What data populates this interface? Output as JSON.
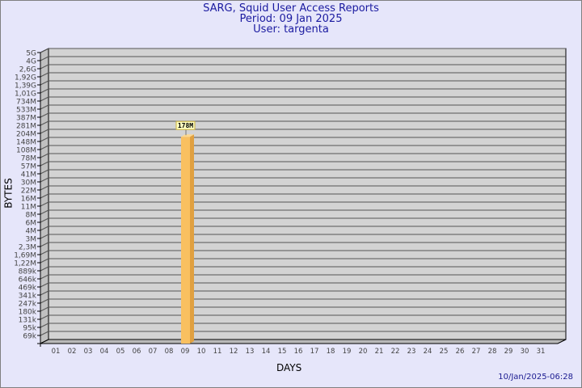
{
  "header": {
    "title": "SARG, Squid User Access Reports",
    "period": "Period: 09 Jan 2025",
    "user": "User: targenta"
  },
  "footer": {
    "timestamp": "10/Jan/2025-06:28"
  },
  "chart_data": {
    "type": "bar",
    "title": "SARG, Squid User Access Reports",
    "xlabel": "DAYS",
    "ylabel": "BYTES",
    "y_scale": "log-like (labeled ticks)",
    "y_ticks": [
      "5G",
      "4G",
      "2,6G",
      "1,92G",
      "1,39G",
      "1,01G",
      "734M",
      "533M",
      "387M",
      "281M",
      "204M",
      "148M",
      "108M",
      "78M",
      "57M",
      "41M",
      "30M",
      "22M",
      "16M",
      "11M",
      "8M",
      "6M",
      "4M",
      "3M",
      "2,3M",
      "1,69M",
      "1,22M",
      "889k",
      "646k",
      "469k",
      "341k",
      "247k",
      "180k",
      "131k",
      "95k",
      "69k"
    ],
    "categories": [
      "01",
      "02",
      "03",
      "04",
      "05",
      "06",
      "07",
      "08",
      "09",
      "10",
      "11",
      "12",
      "13",
      "14",
      "15",
      "16",
      "17",
      "18",
      "19",
      "20",
      "21",
      "22",
      "23",
      "24",
      "25",
      "26",
      "27",
      "28",
      "29",
      "30",
      "31"
    ],
    "bars": [
      {
        "day": "09",
        "value_label": "178M",
        "value_bytes": 178000000
      }
    ],
    "grid": true,
    "colors": {
      "bar": "#f9c060",
      "bar_side": "#e0a040",
      "wall": "#d3d3d3",
      "background": "#e6e6fa",
      "label_box": "#ffffc0"
    }
  }
}
